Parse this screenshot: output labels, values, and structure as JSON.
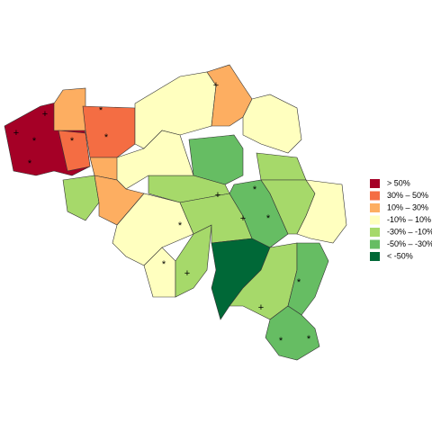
{
  "legend": [
    {
      "label": "> 50%",
      "color": "#a50026"
    },
    {
      "label": "30%  –  50%",
      "color": "#f46d43"
    },
    {
      "label": "10%  –  30%",
      "color": "#fdae61"
    },
    {
      "label": "-10%  –  10%",
      "color": "#ffffbf"
    },
    {
      "label": "-30%  –  -10%",
      "color": "#a6d96a"
    },
    {
      "label": "-50%  –  -30%",
      "color": "#66bd63"
    },
    {
      "label": "< -50%",
      "color": "#006837"
    }
  ],
  "markers": [
    "+",
    "+",
    "*",
    "*",
    "*",
    "*",
    "*",
    "+",
    "*",
    "*",
    "*",
    "+",
    "*",
    "+",
    "+",
    "+",
    "*",
    "*",
    "*"
  ]
}
